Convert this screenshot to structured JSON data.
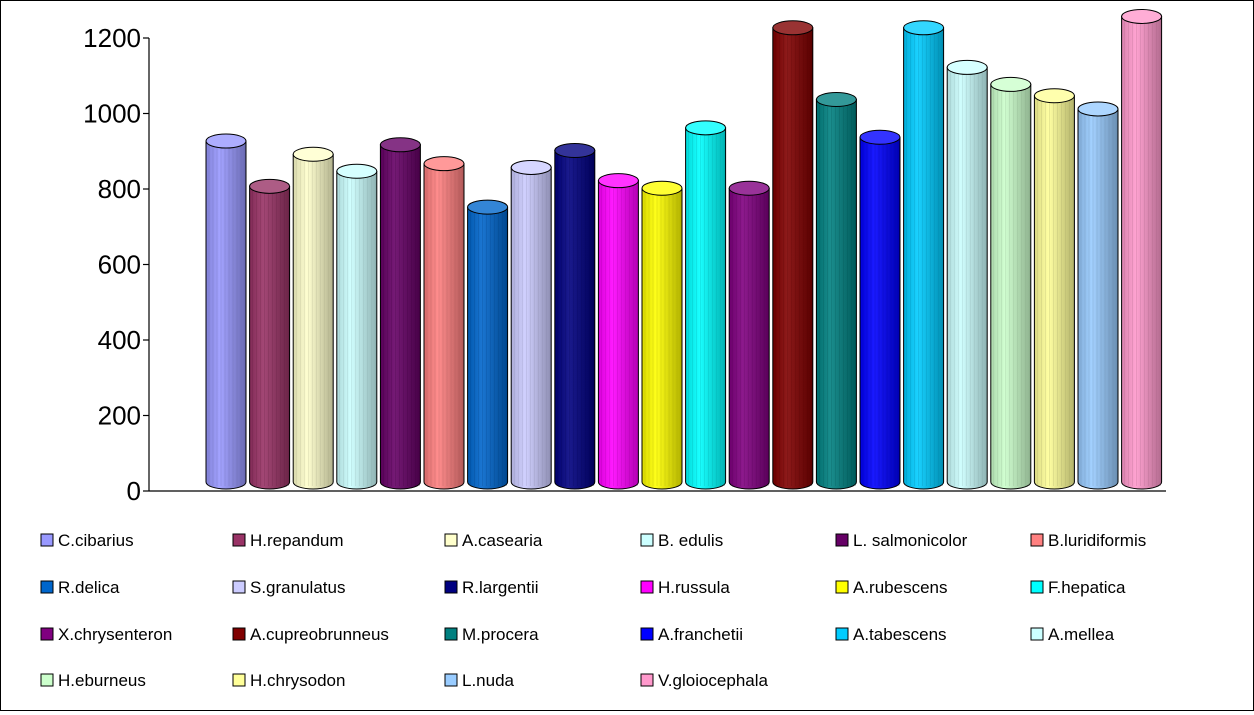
{
  "chart_data": {
    "type": "bar",
    "style": "3d-cylinder",
    "title": "",
    "xlabel": "",
    "ylabel": "",
    "ylim": [
      0,
      1200
    ],
    "yticks": [
      0,
      200,
      400,
      600,
      800,
      1000,
      1200
    ],
    "grid": false,
    "legend_position": "bottom",
    "categories": [
      "C.cibarius",
      "H.repandum",
      "A.casearia",
      "B. edulis",
      "L. salmonicolor",
      "B.luridiformis",
      "R.delica",
      "S.granulatus",
      "R.largentii",
      "H.russula",
      "A.rubescens",
      "F.hepatica",
      "X.chrysenteron",
      "A.cupreobrunneus",
      "M.procera",
      "A.franchetii",
      "A.tabescens",
      "A.mellea",
      "H.eburneus",
      "H.chrysodon",
      "L.nuda",
      "V.gloiocephala"
    ],
    "values": [
      890,
      770,
      855,
      810,
      880,
      830,
      715,
      820,
      865,
      785,
      765,
      925,
      765,
      1190,
      1000,
      900,
      1190,
      1085,
      1040,
      1010,
      975,
      1220
    ],
    "colors": [
      "#9999ff",
      "#993366",
      "#ffffcc",
      "#ccffff",
      "#660066",
      "#ff8080",
      "#0066cc",
      "#ccccff",
      "#000080",
      "#ff00ff",
      "#ffff00",
      "#00ffff",
      "#800080",
      "#800000",
      "#008080",
      "#0000ff",
      "#00ccff",
      "#ccffff",
      "#ccffcc",
      "#ffff99",
      "#99ccff",
      "#ff99cc"
    ]
  }
}
